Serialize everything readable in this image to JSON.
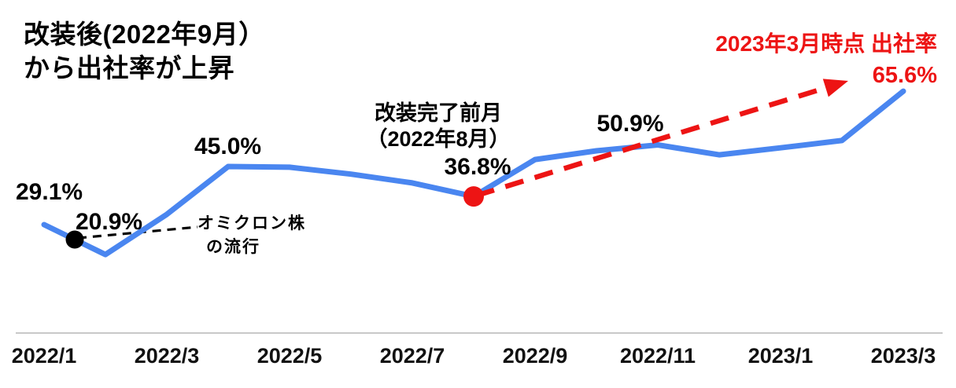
{
  "title": {
    "line1": "改装後(2022年9月）",
    "line2": "から出社率が上昇"
  },
  "highlight_note": {
    "line1": "2023年3月時点 出社率",
    "value": "65.6%"
  },
  "annotations": {
    "start_label": "29.1%",
    "dip_label": "20.9%",
    "peak_label": "45.0%",
    "mid_label": "50.9%",
    "pre_renovation": {
      "line1": "改装完了前月",
      "line2": "（2022年8月）",
      "value": "36.8%"
    },
    "omicron": {
      "line1": "オミクロン株",
      "line2": "の流行"
    }
  },
  "x_axis": {
    "labels": [
      "2022/1",
      "2022/3",
      "2022/5",
      "2022/7",
      "2022/9",
      "2022/11",
      "2023/1",
      "2023/3"
    ]
  },
  "colors": {
    "line_blue": "#4A86F0",
    "accent_red": "#ED1414",
    "text_black": "#000000",
    "axis_gray": "#C8C8C8"
  },
  "chart_data": {
    "type": "line",
    "title": "改装後(2022年9月）から出社率が上昇",
    "series_name": "出社率",
    "unit": "%",
    "x": [
      "2022/1",
      "2022/2",
      "2022/3",
      "2022/4",
      "2022/5",
      "2022/6",
      "2022/7",
      "2022/8",
      "2022/9",
      "2022/10",
      "2022/11",
      "2022/12",
      "2023/1",
      "2023/2",
      "2023/3"
    ],
    "values": [
      29.1,
      20.9,
      31.9,
      45.0,
      44.8,
      42.9,
      40.5,
      36.8,
      46.9,
      49.3,
      50.9,
      48.2,
      50.1,
      52.1,
      65.6
    ],
    "labeled_points": [
      {
        "x": "2022/1",
        "value": 29.1
      },
      {
        "x": "2022/2",
        "value": 20.9
      },
      {
        "x": "2022/4",
        "value": 45.0
      },
      {
        "x": "2022/8",
        "value": 36.8,
        "label": "改装完了前月（2022年8月）"
      },
      {
        "x": "2022/11",
        "value": 50.9
      },
      {
        "x": "2023/3",
        "value": 65.6,
        "label": "2023年3月時点 出社率"
      }
    ],
    "marked_points": [
      {
        "x": "2022/8",
        "marker": "red-dot",
        "note": "改装完了前月"
      },
      {
        "x": "2022/1〜2022/2",
        "marker": "black-dot",
        "note": "オミクロン株の流行"
      }
    ],
    "arrow": {
      "from_x": "2022/8",
      "to_x": "2023/3",
      "meaning": "改装後の出社率上昇トレンド"
    },
    "x_tick_labels": [
      "2022/1",
      "2022/3",
      "2022/5",
      "2022/7",
      "2022/9",
      "2022/11",
      "2023/1",
      "2023/3"
    ],
    "ylim": [
      0,
      90
    ],
    "grid": false,
    "legend": false
  }
}
